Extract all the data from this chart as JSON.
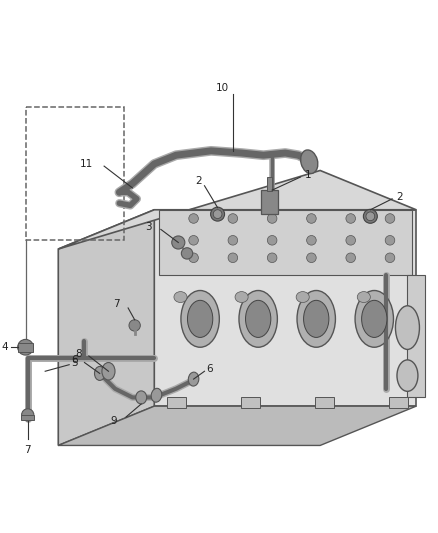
{
  "bg_color": "#ffffff",
  "line_color": "#333333",
  "label_color": "#222222",
  "fig_width": 4.38,
  "fig_height": 5.33,
  "dpi": 100,
  "callout_color": "#333333",
  "callout_fontsize": 7.5,
  "engine_face_color": "#e0e0e0",
  "engine_side_color": "#c8c8c8",
  "engine_top_color": "#d8d8d8",
  "engine_edge_color": "#555555",
  "pipe_outer_color": "#aaaaaa",
  "pipe_inner_color": "#666666",
  "fitting_color": "#888888",
  "bolt_color": "#777777"
}
